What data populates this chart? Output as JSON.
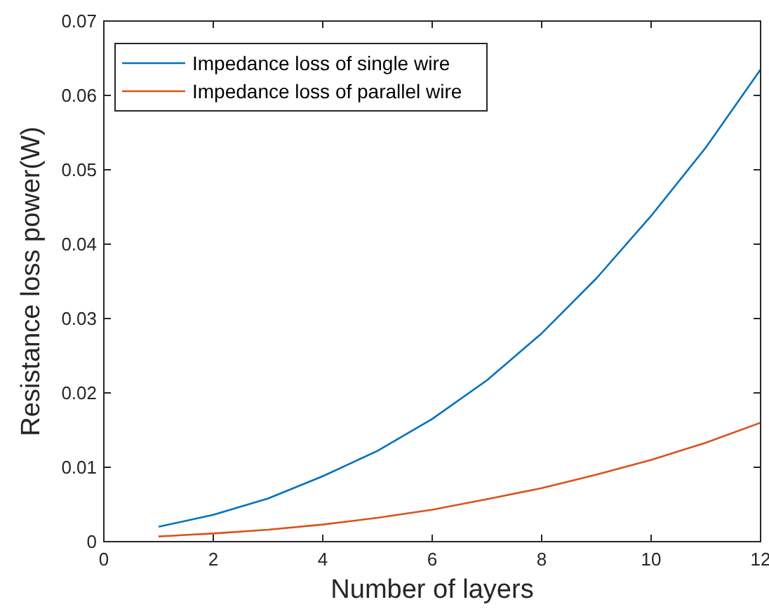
{
  "chart_data": {
    "type": "line",
    "xlabel": "Number of layers",
    "ylabel": "Resistance loss power(W)",
    "x": [
      1,
      2,
      3,
      4,
      5,
      6,
      7,
      8,
      9,
      10,
      11,
      12
    ],
    "series": [
      {
        "name": "Impedance loss of single wire",
        "color": "#0072bd",
        "values": [
          0.002,
          0.0036,
          0.0058,
          0.0088,
          0.0122,
          0.0165,
          0.0217,
          0.028,
          0.0354,
          0.0438,
          0.053,
          0.0635
        ]
      },
      {
        "name": "Impedance loss of parallel wire",
        "color": "#d95319",
        "values": [
          0.0007,
          0.0011,
          0.0016,
          0.0023,
          0.0032,
          0.0043,
          0.0057,
          0.0072,
          0.009,
          0.011,
          0.0133,
          0.016
        ]
      }
    ],
    "xlim": [
      0,
      12
    ],
    "xticks": [
      0,
      2,
      4,
      6,
      8,
      10,
      12
    ],
    "ylim": [
      0,
      0.07
    ],
    "yticks": [
      0,
      0.01,
      0.02,
      0.03,
      0.04,
      0.05,
      0.06,
      0.07
    ],
    "legend": "top left",
    "grid": false,
    "marker": "none",
    "line_style": "solid"
  }
}
